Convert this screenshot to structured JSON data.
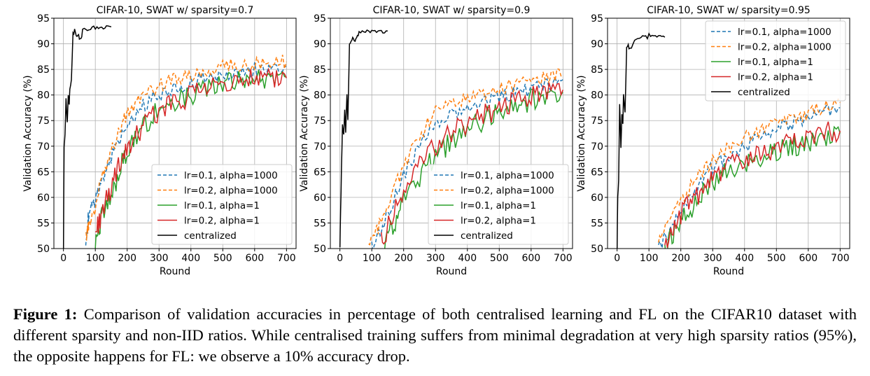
{
  "colors": {
    "blue": "#1f77b4",
    "orange": "#ff7f0e",
    "green": "#2ca02c",
    "red": "#d62728",
    "black": "#000000",
    "grid": "#b0b0b0"
  },
  "chart_data": [
    {
      "type": "line",
      "title": "CIFAR-10, SWAT w/ sparsity=0.7",
      "xlabel": "Round",
      "ylabel": "Validation Accuracy (%)",
      "xlim": [
        -30,
        730
      ],
      "ylim": [
        50,
        95
      ],
      "xticks": [
        0,
        100,
        200,
        300,
        400,
        500,
        600,
        700
      ],
      "yticks": [
        50,
        55,
        60,
        65,
        70,
        75,
        80,
        85,
        90,
        95
      ],
      "grid": true,
      "legend_position": "lower right",
      "series": [
        {
          "name": "lr=0.1, alpha=1000",
          "style": "dashed",
          "color": "blue",
          "x": [
            70,
            80,
            100,
            120,
            150,
            180,
            210,
            250,
            300,
            350,
            400,
            450,
            500,
            550,
            600,
            650,
            700
          ],
          "y": [
            52,
            57,
            59,
            63,
            68,
            72,
            75,
            78,
            80,
            81.5,
            82.5,
            83.5,
            84,
            84.5,
            85,
            85.5,
            85.5
          ]
        },
        {
          "name": "lr=0.2, alpha=1000",
          "style": "dashed",
          "color": "orange",
          "x": [
            70,
            80,
            100,
            120,
            150,
            180,
            210,
            250,
            300,
            350,
            400,
            450,
            500,
            550,
            600,
            650,
            700
          ],
          "y": [
            52,
            55,
            58,
            64,
            69,
            74,
            77,
            79.5,
            82,
            83,
            84,
            84.5,
            85.5,
            85.8,
            86,
            86.3,
            86.5
          ]
        },
        {
          "name": "lr=0.1, alpha=1",
          "style": "solid",
          "color": "green",
          "x": [
            100,
            120,
            150,
            180,
            210,
            250,
            300,
            350,
            400,
            450,
            500,
            550,
            600,
            650,
            700
          ],
          "y": [
            52,
            56,
            60,
            66,
            70,
            74,
            77,
            79,
            80,
            81,
            82,
            82.5,
            83,
            83.2,
            83.5
          ]
        },
        {
          "name": "lr=0.2, alpha=1",
          "style": "solid",
          "color": "red",
          "x": [
            100,
            120,
            150,
            180,
            210,
            250,
            300,
            350,
            400,
            450,
            500,
            550,
            600,
            650,
            700
          ],
          "y": [
            53,
            57,
            62,
            67,
            70,
            74,
            77,
            78.5,
            80,
            81,
            81.8,
            82.5,
            83,
            83.2,
            83.3
          ]
        },
        {
          "name": "centralized",
          "style": "solid",
          "color": "black",
          "x": [
            0,
            2,
            5,
            8,
            12,
            15,
            18,
            20,
            25,
            30,
            35,
            40,
            45,
            50,
            55,
            60,
            70,
            80,
            90,
            100,
            110,
            120,
            130,
            140,
            150
          ],
          "y": [
            50,
            70,
            72,
            79,
            75,
            80,
            78,
            81,
            83,
            92,
            92.5,
            91.5,
            92,
            91,
            90.8,
            92.5,
            93,
            92.8,
            93.2,
            93,
            93.3,
            93.1,
            93.4,
            93.2,
            93.3
          ]
        }
      ]
    },
    {
      "type": "line",
      "title": "CIFAR-10, SWAT w/ sparsity=0.9",
      "xlabel": "Round",
      "ylabel": "Validation Accuracy (%)",
      "xlim": [
        -30,
        730
      ],
      "ylim": [
        50,
        95
      ],
      "xticks": [
        0,
        100,
        200,
        300,
        400,
        500,
        600,
        700
      ],
      "yticks": [
        50,
        55,
        60,
        65,
        70,
        75,
        80,
        85,
        90,
        95
      ],
      "grid": true,
      "legend_position": "lower right",
      "series": [
        {
          "name": "lr=0.1, alpha=1000",
          "style": "dashed",
          "color": "blue",
          "x": [
            100,
            130,
            160,
            200,
            250,
            300,
            350,
            400,
            450,
            500,
            550,
            600,
            650,
            700
          ],
          "y": [
            50,
            54,
            58,
            64,
            70,
            74,
            76,
            77.5,
            78.5,
            79.5,
            80.5,
            81,
            82,
            83
          ]
        },
        {
          "name": "lr=0.2, alpha=1000",
          "style": "dashed",
          "color": "orange",
          "x": [
            90,
            120,
            150,
            200,
            250,
            300,
            350,
            400,
            450,
            500,
            550,
            600,
            650,
            700
          ],
          "y": [
            50,
            54,
            59,
            66,
            72,
            77,
            78.5,
            79,
            80,
            81,
            82,
            83,
            83.5,
            84
          ]
        },
        {
          "name": "lr=0.1, alpha=1",
          "style": "solid",
          "color": "green",
          "x": [
            140,
            170,
            200,
            250,
            300,
            350,
            400,
            450,
            500,
            550,
            600,
            650,
            700
          ],
          "y": [
            51,
            55,
            59,
            64,
            68,
            71,
            73,
            75,
            77,
            78,
            79,
            80,
            80.5
          ]
        },
        {
          "name": "lr=0.2, alpha=1",
          "style": "solid",
          "color": "red",
          "x": [
            130,
            160,
            200,
            250,
            300,
            350,
            400,
            450,
            500,
            550,
            600,
            650,
            700
          ],
          "y": [
            51,
            56,
            61,
            66,
            70,
            72.5,
            74.5,
            76,
            77.5,
            78.5,
            79.5,
            80.5,
            81
          ]
        },
        {
          "name": "centralized",
          "style": "solid",
          "color": "black",
          "x": [
            0,
            2,
            5,
            8,
            12,
            15,
            18,
            22,
            25,
            30,
            35,
            40,
            45,
            50,
            55,
            60,
            70,
            80,
            90,
            100,
            110,
            120,
            130,
            140,
            150
          ],
          "y": [
            50,
            57,
            66,
            74,
            72,
            77,
            73,
            80,
            75,
            90,
            90.5,
            91,
            90.3,
            90.8,
            91.5,
            92,
            92.5,
            92.3,
            92.6,
            92.4,
            92.7,
            92.5,
            92.6,
            92.4,
            92.5
          ]
        }
      ]
    },
    {
      "type": "line",
      "title": "CIFAR-10, SWAT w/ sparsity=0.95",
      "xlabel": "Round",
      "ylabel": "Validation Accuracy (%)",
      "xlim": [
        -30,
        730
      ],
      "ylim": [
        50,
        95
      ],
      "xticks": [
        0,
        100,
        200,
        300,
        400,
        500,
        600,
        700
      ],
      "yticks": [
        50,
        55,
        60,
        65,
        70,
        75,
        80,
        85,
        90,
        95
      ],
      "grid": true,
      "legend_position": "upper right",
      "series": [
        {
          "name": "lr=0.1, alpha=1000",
          "style": "dashed",
          "color": "blue",
          "x": [
            130,
            160,
            200,
            250,
            300,
            350,
            400,
            450,
            500,
            550,
            600,
            650,
            700
          ],
          "y": [
            50,
            53,
            57,
            62,
            66,
            68,
            70,
            72,
            73.5,
            74.5,
            75.5,
            76.5,
            77.5
          ]
        },
        {
          "name": "lr=0.2, alpha=1000",
          "style": "dashed",
          "color": "orange",
          "x": [
            130,
            160,
            200,
            250,
            300,
            350,
            400,
            450,
            500,
            550,
            600,
            650,
            700
          ],
          "y": [
            51,
            55,
            59,
            64,
            67,
            69.5,
            71.5,
            73,
            74.5,
            75.5,
            76.5,
            77.5,
            78.5
          ]
        },
        {
          "name": "lr=0.1, alpha=1",
          "style": "solid",
          "color": "green",
          "x": [
            150,
            180,
            220,
            260,
            300,
            350,
            400,
            450,
            500,
            550,
            600,
            650,
            700
          ],
          "y": [
            50,
            53,
            57,
            60,
            63,
            65,
            66.5,
            67.5,
            69,
            70,
            71,
            72,
            72.5
          ]
        },
        {
          "name": "lr=0.2, alpha=1",
          "style": "solid",
          "color": "red",
          "x": [
            150,
            180,
            220,
            260,
            300,
            350,
            400,
            450,
            500,
            550,
            600,
            650,
            700
          ],
          "y": [
            51,
            55,
            58,
            61,
            64,
            66,
            67.5,
            68.5,
            70,
            71,
            72,
            72.5,
            73
          ]
        },
        {
          "name": "centralized",
          "style": "solid",
          "color": "black",
          "x": [
            0,
            2,
            5,
            8,
            12,
            15,
            18,
            20,
            25,
            30,
            35,
            40,
            50,
            60,
            70,
            80,
            90,
            100,
            110,
            120,
            130,
            140,
            150
          ],
          "y": [
            50,
            60,
            63,
            78,
            70,
            76,
            74,
            80,
            77,
            89,
            89.5,
            89,
            90,
            91,
            90.8,
            91.5,
            91.2,
            91.6,
            91.3,
            91.5,
            91.2,
            91.4,
            91.3
          ]
        }
      ]
    }
  ],
  "caption": {
    "label": "Figure 1:",
    "text": " Comparison of validation accuracies in percentage of both centralised learning and FL on the CIFAR10 dataset with different sparsity and non-IID ratios.  While centralised training suffers from minimal degradation at very high sparsity ratios (95%), the opposite happens for FL: we observe a 10% accuracy drop."
  }
}
